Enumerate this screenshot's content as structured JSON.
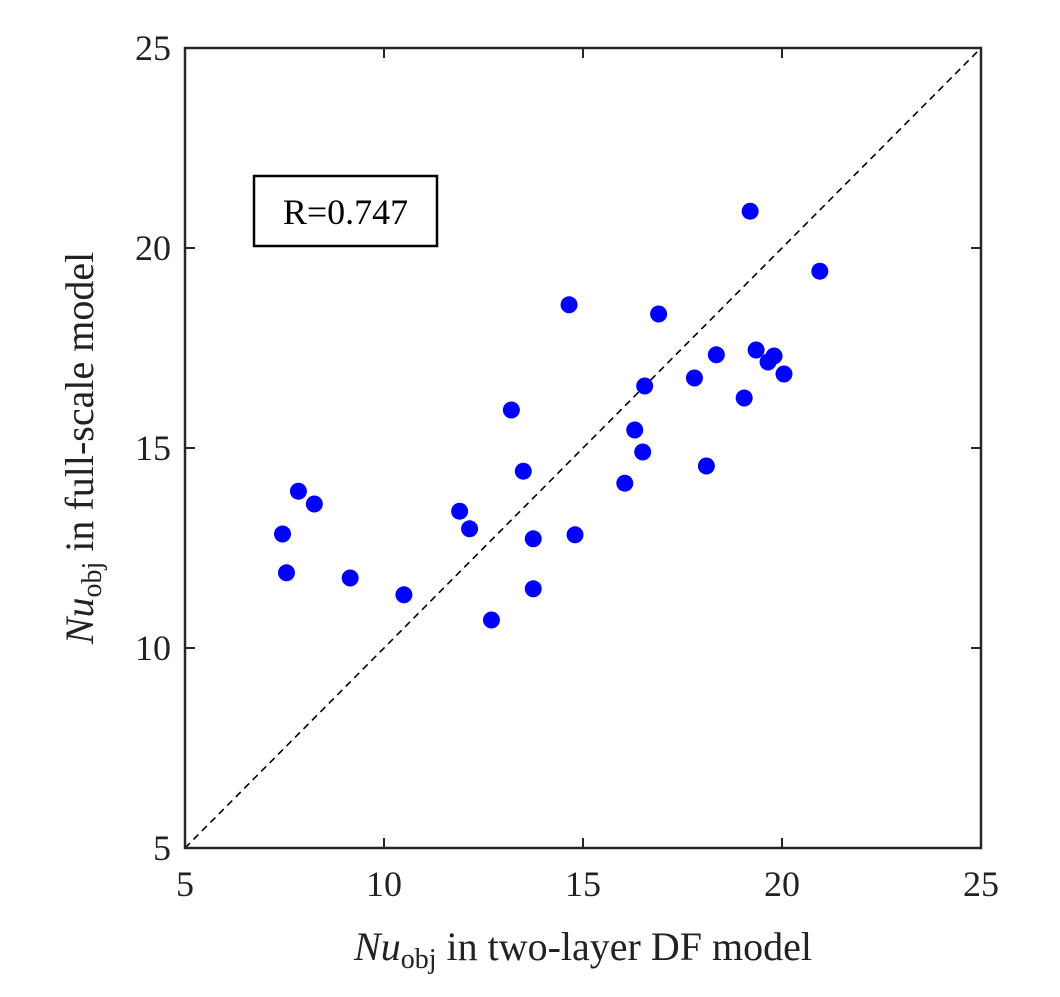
{
  "chart_data": {
    "type": "scatter",
    "title": "",
    "xlabel": {
      "symbol": "Nu",
      "subscript": "obj",
      "rest": " in two-layer DF model"
    },
    "ylabel": {
      "symbol": "Nu",
      "subscript": "obj",
      "rest": " in full-scale model"
    },
    "xlim": [
      5,
      25
    ],
    "ylim": [
      5,
      25
    ],
    "xticks": [
      5,
      10,
      15,
      20,
      25
    ],
    "yticks": [
      5,
      10,
      15,
      20,
      25
    ],
    "xtick_labels": [
      "5",
      "10",
      "15",
      "20",
      "25"
    ],
    "ytick_labels": [
      "5",
      "10",
      "15",
      "20",
      "25"
    ],
    "grid": false,
    "reference_line": {
      "style": "dashed",
      "from": [
        5,
        5
      ],
      "to": [
        25,
        25
      ]
    },
    "annotation": "R=0.747",
    "marker_color": "#0000ff",
    "series": [
      {
        "name": "data",
        "points": [
          [
            7.45,
            12.85
          ],
          [
            7.55,
            11.88
          ],
          [
            7.85,
            13.92
          ],
          [
            8.25,
            13.6
          ],
          [
            9.15,
            11.75
          ],
          [
            10.5,
            11.33
          ],
          [
            11.9,
            13.42
          ],
          [
            12.15,
            12.98
          ],
          [
            12.7,
            10.7
          ],
          [
            13.2,
            15.95
          ],
          [
            13.5,
            14.42
          ],
          [
            13.75,
            11.48
          ],
          [
            13.75,
            12.73
          ],
          [
            14.65,
            18.58
          ],
          [
            14.8,
            12.83
          ],
          [
            16.05,
            14.12
          ],
          [
            16.3,
            15.45
          ],
          [
            16.5,
            14.9
          ],
          [
            16.55,
            16.55
          ],
          [
            16.9,
            18.35
          ],
          [
            17.8,
            16.75
          ],
          [
            18.1,
            14.55
          ],
          [
            18.35,
            17.33
          ],
          [
            19.05,
            16.25
          ],
          [
            19.2,
            20.92
          ],
          [
            19.35,
            17.45
          ],
          [
            19.65,
            17.15
          ],
          [
            19.8,
            17.3
          ],
          [
            20.05,
            16.85
          ],
          [
            20.95,
            19.42
          ]
        ]
      }
    ]
  }
}
